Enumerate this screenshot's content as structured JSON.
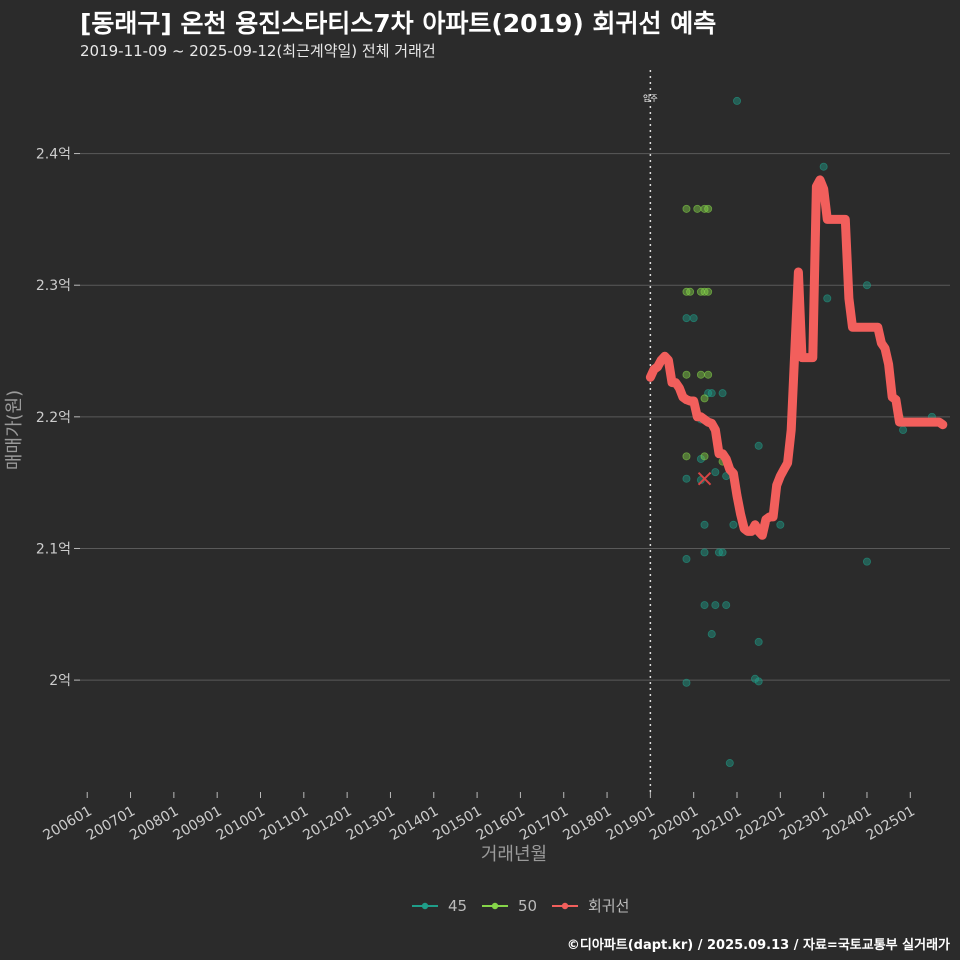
{
  "header": {
    "title": "[동래구] 온천 용진스타티스7차 아파트(2019) 회귀선 예측",
    "subtitle": "2019-11-09 ~ 2025-09-12(최근계약일) 전체 거래건"
  },
  "caption": "©디아파트(dapt.kr) / 2025.09.13 / 자료=국토교통부 실거래가",
  "colors": {
    "s45": "#1f9e89",
    "s50": "#86d549",
    "regression": "#f25f5c",
    "background": "#2b2b2b",
    "grid": "#5a5a5a"
  },
  "chart_data": {
    "type": "scatter",
    "xlabel": "거래년월",
    "ylabel": "매매가(원)",
    "x_ticks": [
      "200601",
      "200701",
      "200801",
      "200901",
      "201001",
      "201101",
      "201201",
      "201301",
      "201401",
      "201501",
      "201601",
      "201701",
      "201801",
      "201901",
      "202001",
      "202101",
      "202201",
      "202301",
      "202401",
      "202501"
    ],
    "y_ticks": [
      {
        "value": 2.0,
        "label": "2억"
      },
      {
        "value": 2.1,
        "label": "2.1억"
      },
      {
        "value": 2.2,
        "label": "2.2억"
      },
      {
        "value": 2.3,
        "label": "2.3억"
      },
      {
        "value": 2.4,
        "label": "2.4억"
      }
    ],
    "xlim": [
      "2005-11",
      "2025-12"
    ],
    "ylim": [
      1.915,
      2.465
    ],
    "y_unit": "억",
    "grid": true,
    "legend_position": "bottom",
    "annotation": {
      "label": "입주",
      "x": "2019-01"
    },
    "legend": [
      {
        "name": "45",
        "color": "#1f9e89"
      },
      {
        "name": "50",
        "color": "#86d549"
      },
      {
        "name": "회귀선",
        "color": "#f25f5c"
      }
    ],
    "series": [
      {
        "name": "45",
        "points": [
          [
            "2019-11",
            2.153
          ],
          [
            "2019-11",
            2.092
          ],
          [
            "2019-11",
            1.998
          ],
          [
            "2019-11",
            2.275
          ],
          [
            "2019-12",
            2.212
          ],
          [
            "2020-01",
            2.275
          ],
          [
            "2020-03",
            2.198
          ],
          [
            "2020-03",
            2.168
          ],
          [
            "2020-03",
            2.152
          ],
          [
            "2020-04",
            2.057
          ],
          [
            "2020-04",
            2.118
          ],
          [
            "2020-04",
            2.097
          ],
          [
            "2020-05",
            2.218
          ],
          [
            "2020-06",
            2.218
          ],
          [
            "2020-06",
            2.035
          ],
          [
            "2020-07",
            2.158
          ],
          [
            "2020-07",
            2.057
          ],
          [
            "2020-08",
            2.097
          ],
          [
            "2020-09",
            2.218
          ],
          [
            "2020-09",
            2.097
          ],
          [
            "2020-10",
            2.057
          ],
          [
            "2020-10",
            2.155
          ],
          [
            "2020-11",
            1.937
          ],
          [
            "2020-12",
            2.118
          ],
          [
            "2021-01",
            2.44
          ],
          [
            "2021-06",
            2.001
          ],
          [
            "2021-07",
            2.029
          ],
          [
            "2021-07",
            2.178
          ],
          [
            "2021-07",
            1.999
          ],
          [
            "2022-01",
            2.118
          ],
          [
            "2023-01",
            2.39
          ],
          [
            "2023-02",
            2.29
          ],
          [
            "2024-01",
            2.3
          ],
          [
            "2024-01",
            2.09
          ],
          [
            "2024-11",
            2.19
          ],
          [
            "2025-07",
            2.2
          ]
        ]
      },
      {
        "name": "50",
        "points": [
          [
            "2019-11",
            2.358
          ],
          [
            "2019-11",
            2.295
          ],
          [
            "2019-12",
            2.295
          ],
          [
            "2019-11",
            2.232
          ],
          [
            "2019-11",
            2.17
          ],
          [
            "2020-02",
            2.358
          ],
          [
            "2020-04",
            2.358
          ],
          [
            "2020-05",
            2.358
          ],
          [
            "2020-03",
            2.295
          ],
          [
            "2020-04",
            2.295
          ],
          [
            "2020-05",
            2.295
          ],
          [
            "2020-03",
            2.232
          ],
          [
            "2020-05",
            2.232
          ],
          [
            "2020-04",
            2.17
          ],
          [
            "2020-04",
            2.214
          ],
          [
            "2020-09",
            2.166
          ],
          [
            "2024-10",
            2.2
          ]
        ]
      },
      {
        "name": "회귀선",
        "points": [
          [
            "2019-01",
            2.23
          ],
          [
            "2019-02",
            2.236
          ],
          [
            "2019-03",
            2.238
          ],
          [
            "2019-04",
            2.243
          ],
          [
            "2019-05",
            2.246
          ],
          [
            "2019-06",
            2.243
          ],
          [
            "2019-07",
            2.226
          ],
          [
            "2019-08",
            2.226
          ],
          [
            "2019-09",
            2.222
          ],
          [
            "2019-10",
            2.215
          ],
          [
            "2019-11",
            2.213
          ],
          [
            "2019-12",
            2.212
          ],
          [
            "2020-01",
            2.212
          ],
          [
            "2020-02",
            2.2
          ],
          [
            "2020-03",
            2.2
          ],
          [
            "2020-04",
            2.198
          ],
          [
            "2020-05",
            2.196
          ],
          [
            "2020-06",
            2.195
          ],
          [
            "2020-07",
            2.19
          ],
          [
            "2020-08",
            2.172
          ],
          [
            "2020-09",
            2.172
          ],
          [
            "2020-10",
            2.168
          ],
          [
            "2020-11",
            2.16
          ],
          [
            "2020-12",
            2.157
          ],
          [
            "2021-01",
            2.14
          ],
          [
            "2021-02",
            2.126
          ],
          [
            "2021-03",
            2.115
          ],
          [
            "2021-04",
            2.113
          ],
          [
            "2021-05",
            2.113
          ],
          [
            "2021-06",
            2.118
          ],
          [
            "2021-07",
            2.113
          ],
          [
            "2021-08",
            2.11
          ],
          [
            "2021-09",
            2.122
          ],
          [
            "2021-10",
            2.124
          ],
          [
            "2021-11",
            2.124
          ],
          [
            "2021-12",
            2.148
          ],
          [
            "2022-01",
            2.155
          ],
          [
            "2022-02",
            2.16
          ],
          [
            "2022-03",
            2.165
          ],
          [
            "2022-04",
            2.19
          ],
          [
            "2022-05",
            2.25
          ],
          [
            "2022-06",
            2.31
          ],
          [
            "2022-07",
            2.245
          ],
          [
            "2022-08",
            2.245
          ],
          [
            "2022-09",
            2.245
          ],
          [
            "2022-10",
            2.245
          ],
          [
            "2022-11",
            2.375
          ],
          [
            "2022-12",
            2.38
          ],
          [
            "2023-01",
            2.373
          ],
          [
            "2023-02",
            2.35
          ],
          [
            "2023-03",
            2.35
          ],
          [
            "2023-04",
            2.35
          ],
          [
            "2023-05",
            2.35
          ],
          [
            "2023-06",
            2.35
          ],
          [
            "2023-07",
            2.35
          ],
          [
            "2023-08",
            2.29
          ],
          [
            "2023-09",
            2.268
          ],
          [
            "2023-10",
            2.268
          ],
          [
            "2023-11",
            2.268
          ],
          [
            "2023-12",
            2.268
          ],
          [
            "2024-01",
            2.268
          ],
          [
            "2024-02",
            2.268
          ],
          [
            "2024-03",
            2.268
          ],
          [
            "2024-04",
            2.268
          ],
          [
            "2024-05",
            2.256
          ],
          [
            "2024-06",
            2.252
          ],
          [
            "2024-07",
            2.24
          ],
          [
            "2024-08",
            2.215
          ],
          [
            "2024-09",
            2.213
          ],
          [
            "2024-10",
            2.196
          ],
          [
            "2024-11",
            2.196
          ],
          [
            "2024-12",
            2.196
          ],
          [
            "2025-01",
            2.196
          ],
          [
            "2025-02",
            2.196
          ],
          [
            "2025-03",
            2.196
          ],
          [
            "2025-04",
            2.196
          ],
          [
            "2025-05",
            2.196
          ],
          [
            "2025-06",
            2.196
          ],
          [
            "2025-07",
            2.196
          ],
          [
            "2025-08",
            2.196
          ],
          [
            "2025-09",
            2.196
          ],
          [
            "2025-10",
            2.194
          ]
        ]
      }
    ],
    "latest_trade": {
      "x": "2020-04",
      "y": 2.153,
      "marker": "x"
    }
  }
}
